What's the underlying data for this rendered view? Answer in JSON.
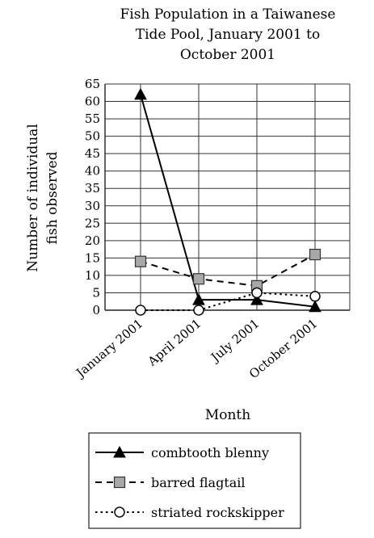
{
  "chart_data": {
    "type": "line",
    "title_lines": [
      "Fish Population in a Taiwanese",
      "Tide Pool, January 2001 to",
      "October 2001"
    ],
    "xlabel": "Month",
    "ylabel_lines": [
      "Number of individual",
      "fish observed"
    ],
    "categories": [
      "January 2001",
      "April 2001",
      "July 2001",
      "October 2001"
    ],
    "ylim": [
      0,
      65
    ],
    "y_ticks": [
      0,
      5,
      10,
      15,
      20,
      25,
      30,
      35,
      40,
      45,
      50,
      55,
      60,
      65
    ],
    "grid": true,
    "legend_position": "bottom",
    "series": [
      {
        "name": "combtooth blenny",
        "values": [
          62,
          3,
          3,
          1
        ],
        "marker": "triangle-filled",
        "line": "solid",
        "color": "#000000"
      },
      {
        "name": "barred flagtail",
        "values": [
          14,
          9,
          7,
          16
        ],
        "marker": "square-gray",
        "line": "dashed",
        "color": "#9a9a9a"
      },
      {
        "name": "striated rockskipper",
        "values": [
          0,
          0,
          5,
          4
        ],
        "marker": "circle-open",
        "line": "dotted",
        "color": "#ffffff"
      }
    ]
  }
}
